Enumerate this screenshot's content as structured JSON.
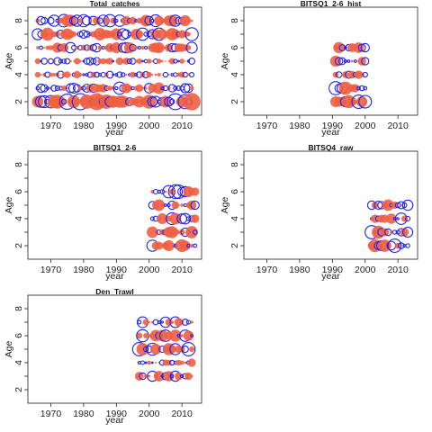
{
  "chart_data": [
    {
      "type": "bubble",
      "title": "Total_catches",
      "xlabel": "year",
      "ylabel": "Age",
      "xlim": [
        1963,
        2016
      ],
      "ylim": [
        1,
        9
      ],
      "xticks": [
        1970,
        1980,
        1990,
        2000,
        2010
      ],
      "yticks": [
        2,
        4,
        6,
        8
      ],
      "years": [
        1966,
        2013
      ],
      "ages": [
        2,
        3,
        4,
        5,
        6,
        7,
        8
      ],
      "age_scale": {
        "2": 1.4,
        "3": 1.0,
        "4": 0.6,
        "5": 0.6,
        "6": 0.9,
        "7": 1.1,
        "8": 1.0
      },
      "series": [
        {
          "name": "positive",
          "color": "#ef5f43"
        },
        {
          "name": "negative",
          "color": "#1f22ee"
        }
      ]
    },
    {
      "type": "bubble",
      "title": "BITSQ1_2-6_hist",
      "xlabel": "year",
      "ylabel": "Age",
      "xlim": [
        1963,
        2016
      ],
      "ylim": [
        1,
        9
      ],
      "xticks": [
        1970,
        1980,
        1990,
        2000,
        2010
      ],
      "yticks": [
        2,
        4,
        6,
        8
      ],
      "years": [
        1991,
        2000
      ],
      "ages": [
        2,
        3,
        4,
        5,
        6
      ],
      "age_scale": {
        "2": 1.1,
        "3": 1.2,
        "4": 1.1,
        "5": 1.0,
        "6": 1.0
      }
    },
    {
      "type": "bubble",
      "title": "BITSQ1_2-6",
      "xlabel": "year",
      "ylabel": "Age",
      "xlim": [
        1963,
        2016
      ],
      "ylim": [
        1,
        9
      ],
      "xticks": [
        1970,
        1980,
        1990,
        2000,
        2010
      ],
      "yticks": [
        2,
        4,
        6,
        8
      ],
      "years": [
        2001,
        2014
      ],
      "ages": [
        2,
        3,
        4,
        5,
        6
      ],
      "age_scale": {
        "2": 1.2,
        "3": 1.0,
        "4": 1.0,
        "5": 1.0,
        "6": 1.1
      }
    },
    {
      "type": "bubble",
      "title": "BITSQ4_raw",
      "xlabel": "year",
      "ylabel": "Age",
      "xlim": [
        1963,
        2016
      ],
      "ylim": [
        1,
        9
      ],
      "xticks": [
        1970,
        1980,
        1990,
        2000,
        2010
      ],
      "yticks": [
        2,
        4,
        6,
        8
      ],
      "years": [
        2002,
        2013
      ],
      "ages": [
        2,
        3,
        4,
        5
      ],
      "age_scale": {
        "2": 1.1,
        "3": 1.1,
        "4": 1.0,
        "5": 1.0
      }
    },
    {
      "type": "bubble",
      "title": "Den_Trawl",
      "xlabel": "year",
      "ylabel": "Age",
      "xlim": [
        1963,
        2016
      ],
      "ylim": [
        1,
        9
      ],
      "xticks": [
        1970,
        1980,
        1990,
        2000,
        2010
      ],
      "yticks": [
        2,
        4,
        6,
        8
      ],
      "years": [
        1997,
        2013
      ],
      "ages": [
        3,
        4,
        5,
        6,
        7
      ],
      "age_scale": {
        "3": 0.9,
        "4": 0.7,
        "5": 1.1,
        "6": 1.0,
        "7": 0.9
      }
    }
  ]
}
